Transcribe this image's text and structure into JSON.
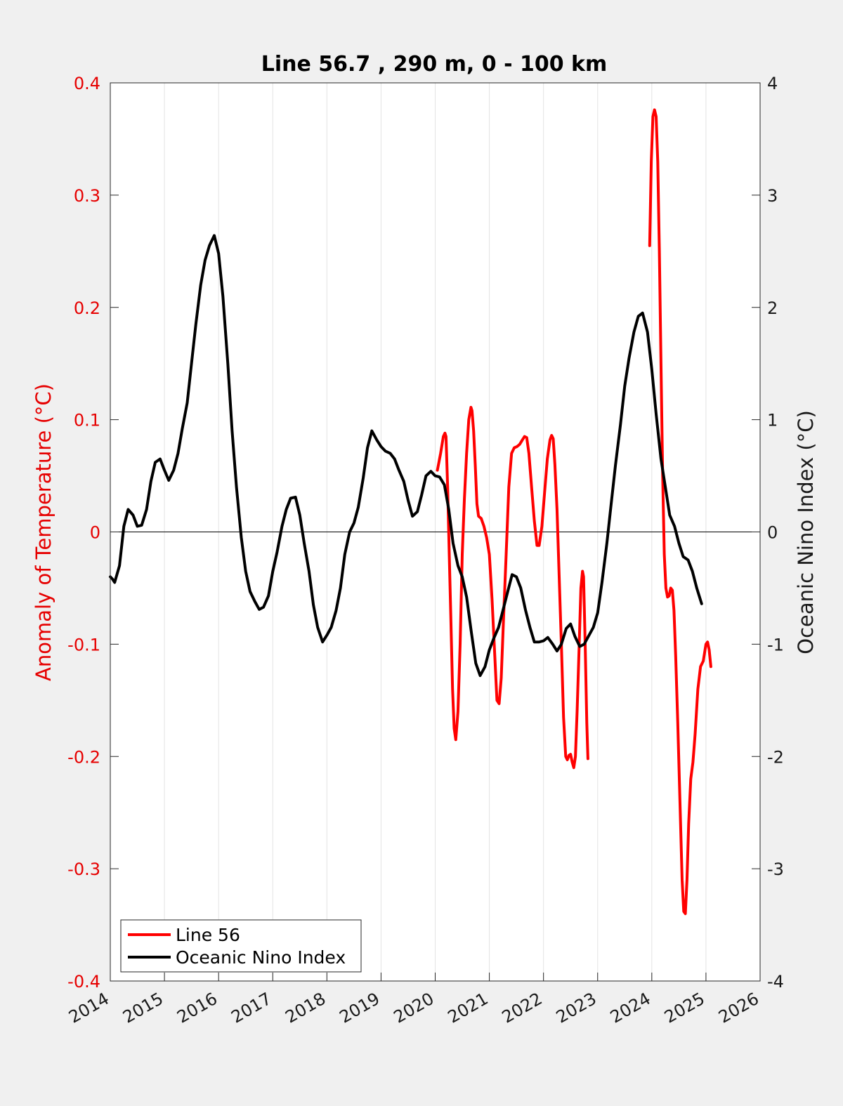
{
  "chart_data": {
    "type": "line",
    "title": "Line 56.7 , 290 m, 0 - 100 km",
    "xlabel": "",
    "ylabel_left": "Anomaly of Temperature (°C)",
    "ylabel_right": "Oceanic Nino Index (°C)",
    "xlim": [
      2014,
      2026
    ],
    "ylim_left": [
      -0.4,
      0.4
    ],
    "ylim_right": [
      -4,
      4
    ],
    "x_ticks": [
      "2014",
      "2015",
      "2016",
      "2017",
      "2018",
      "2019",
      "2020",
      "2021",
      "2022",
      "2023",
      "2024",
      "2025",
      "2026"
    ],
    "y_ticks_left": [
      "-0.4",
      "-0.3",
      "-0.2",
      "-0.1",
      "0",
      "0.1",
      "0.2",
      "0.3",
      "0.4"
    ],
    "y_ticks_right": [
      "-4",
      "-3",
      "-2",
      "-1",
      "0",
      "1",
      "2",
      "3",
      "4"
    ],
    "grid": "vertical",
    "zero_line": true,
    "legend_position": "bottom-left",
    "series": [
      {
        "name": "Line 56",
        "axis": "left",
        "color": "#ff0000",
        "segments": [
          [
            [
              2020.04,
              0.055
            ],
            [
              2020.1,
              0.07
            ],
            [
              2020.15,
              0.085
            ],
            [
              2020.18,
              0.088
            ],
            [
              2020.2,
              0.085
            ],
            [
              2020.23,
              0.04
            ],
            [
              2020.26,
              -0.02
            ],
            [
              2020.29,
              -0.08
            ],
            [
              2020.32,
              -0.14
            ],
            [
              2020.35,
              -0.175
            ],
            [
              2020.38,
              -0.185
            ],
            [
              2020.42,
              -0.16
            ],
            [
              2020.46,
              -0.1
            ],
            [
              2020.5,
              -0.02
            ],
            [
              2020.54,
              0.03
            ],
            [
              2020.58,
              0.07
            ],
            [
              2020.62,
              0.1
            ],
            [
              2020.66,
              0.111
            ],
            [
              2020.68,
              0.108
            ],
            [
              2020.71,
              0.09
            ],
            [
              2020.74,
              0.06
            ],
            [
              2020.77,
              0.025
            ],
            [
              2020.8,
              0.014
            ],
            [
              2020.85,
              0.012
            ],
            [
              2020.9,
              0.005
            ],
            [
              2020.95,
              -0.005
            ],
            [
              2021.0,
              -0.02
            ],
            [
              2021.05,
              -0.06
            ],
            [
              2021.1,
              -0.11
            ],
            [
              2021.14,
              -0.15
            ],
            [
              2021.18,
              -0.153
            ],
            [
              2021.22,
              -0.13
            ],
            [
              2021.26,
              -0.08
            ],
            [
              2021.31,
              -0.02
            ],
            [
              2021.36,
              0.04
            ],
            [
              2021.41,
              0.07
            ],
            [
              2021.46,
              0.075
            ],
            [
              2021.51,
              0.076
            ],
            [
              2021.56,
              0.078
            ],
            [
              2021.61,
              0.082
            ],
            [
              2021.65,
              0.085
            ],
            [
              2021.69,
              0.084
            ],
            [
              2021.73,
              0.07
            ],
            [
              2021.78,
              0.04
            ],
            [
              2021.83,
              0.01
            ],
            [
              2021.88,
              -0.012
            ],
            [
              2021.92,
              -0.012
            ],
            [
              2021.97,
              0.005
            ],
            [
              2022.02,
              0.035
            ],
            [
              2022.07,
              0.065
            ],
            [
              2022.12,
              0.082
            ],
            [
              2022.15,
              0.086
            ],
            [
              2022.18,
              0.083
            ],
            [
              2022.21,
              0.06
            ],
            [
              2022.25,
              0.02
            ],
            [
              2022.29,
              -0.04
            ],
            [
              2022.33,
              -0.1
            ],
            [
              2022.37,
              -0.165
            ],
            [
              2022.41,
              -0.2
            ],
            [
              2022.44,
              -0.203
            ],
            [
              2022.47,
              -0.199
            ],
            [
              2022.5,
              -0.198
            ],
            [
              2022.53,
              -0.205
            ],
            [
              2022.56,
              -0.21
            ],
            [
              2022.59,
              -0.2
            ],
            [
              2022.62,
              -0.16
            ],
            [
              2022.66,
              -0.1
            ],
            [
              2022.69,
              -0.05
            ],
            [
              2022.72,
              -0.035
            ],
            [
              2022.74,
              -0.04
            ],
            [
              2022.77,
              -0.1
            ],
            [
              2022.8,
              -0.17
            ],
            [
              2022.82,
              -0.202
            ]
          ],
          [
            [
              2023.96,
              0.255
            ],
            [
              2023.99,
              0.33
            ],
            [
              2024.02,
              0.37
            ],
            [
              2024.05,
              0.376
            ],
            [
              2024.08,
              0.37
            ],
            [
              2024.11,
              0.33
            ],
            [
              2024.14,
              0.25
            ],
            [
              2024.17,
              0.15
            ],
            [
              2024.2,
              0.05
            ],
            [
              2024.23,
              -0.02
            ],
            [
              2024.26,
              -0.05
            ],
            [
              2024.29,
              -0.058
            ],
            [
              2024.32,
              -0.057
            ],
            [
              2024.35,
              -0.05
            ],
            [
              2024.38,
              -0.052
            ],
            [
              2024.41,
              -0.07
            ],
            [
              2024.44,
              -0.11
            ],
            [
              2024.48,
              -0.17
            ],
            [
              2024.52,
              -0.24
            ],
            [
              2024.56,
              -0.31
            ],
            [
              2024.59,
              -0.338
            ],
            [
              2024.62,
              -0.34
            ],
            [
              2024.65,
              -0.31
            ],
            [
              2024.68,
              -0.26
            ],
            [
              2024.72,
              -0.22
            ],
            [
              2024.76,
              -0.205
            ],
            [
              2024.8,
              -0.18
            ],
            [
              2024.85,
              -0.14
            ],
            [
              2024.9,
              -0.12
            ],
            [
              2024.95,
              -0.115
            ],
            [
              2025.0,
              -0.1
            ],
            [
              2025.03,
              -0.098
            ],
            [
              2025.06,
              -0.105
            ],
            [
              2025.09,
              -0.12
            ]
          ]
        ]
      },
      {
        "name": "Oceanic Nino Index",
        "axis": "right",
        "color": "#000000",
        "points": [
          [
            2014.0,
            -0.4
          ],
          [
            2014.04,
            -0.42
          ],
          [
            2014.08,
            -0.45
          ],
          [
            2014.17,
            -0.3
          ],
          [
            2014.25,
            0.05
          ],
          [
            2014.33,
            0.2
          ],
          [
            2014.42,
            0.15
          ],
          [
            2014.5,
            0.05
          ],
          [
            2014.58,
            0.06
          ],
          [
            2014.67,
            0.2
          ],
          [
            2014.75,
            0.45
          ],
          [
            2014.83,
            0.62
          ],
          [
            2014.92,
            0.65
          ],
          [
            2015.0,
            0.55
          ],
          [
            2015.08,
            0.46
          ],
          [
            2015.17,
            0.55
          ],
          [
            2015.25,
            0.7
          ],
          [
            2015.33,
            0.92
          ],
          [
            2015.42,
            1.15
          ],
          [
            2015.5,
            1.5
          ],
          [
            2015.58,
            1.85
          ],
          [
            2015.67,
            2.2
          ],
          [
            2015.75,
            2.42
          ],
          [
            2015.83,
            2.55
          ],
          [
            2015.92,
            2.64
          ],
          [
            2016.0,
            2.48
          ],
          [
            2016.08,
            2.1
          ],
          [
            2016.17,
            1.5
          ],
          [
            2016.25,
            0.9
          ],
          [
            2016.33,
            0.4
          ],
          [
            2016.42,
            -0.05
          ],
          [
            2016.5,
            -0.35
          ],
          [
            2016.58,
            -0.53
          ],
          [
            2016.67,
            -0.62
          ],
          [
            2016.75,
            -0.69
          ],
          [
            2016.83,
            -0.67
          ],
          [
            2016.92,
            -0.57
          ],
          [
            2017.0,
            -0.35
          ],
          [
            2017.08,
            -0.18
          ],
          [
            2017.17,
            0.05
          ],
          [
            2017.25,
            0.2
          ],
          [
            2017.33,
            0.3
          ],
          [
            2017.42,
            0.31
          ],
          [
            2017.5,
            0.15
          ],
          [
            2017.58,
            -0.1
          ],
          [
            2017.67,
            -0.35
          ],
          [
            2017.75,
            -0.65
          ],
          [
            2017.83,
            -0.85
          ],
          [
            2017.92,
            -0.98
          ],
          [
            2018.0,
            -0.92
          ],
          [
            2018.08,
            -0.85
          ],
          [
            2018.17,
            -0.7
          ],
          [
            2018.25,
            -0.5
          ],
          [
            2018.33,
            -0.2
          ],
          [
            2018.42,
            0.0
          ],
          [
            2018.5,
            0.08
          ],
          [
            2018.58,
            0.22
          ],
          [
            2018.67,
            0.48
          ],
          [
            2018.75,
            0.75
          ],
          [
            2018.83,
            0.9
          ],
          [
            2018.92,
            0.82
          ],
          [
            2019.0,
            0.76
          ],
          [
            2019.08,
            0.72
          ],
          [
            2019.17,
            0.7
          ],
          [
            2019.25,
            0.65
          ],
          [
            2019.33,
            0.55
          ],
          [
            2019.42,
            0.45
          ],
          [
            2019.5,
            0.28
          ],
          [
            2019.58,
            0.14
          ],
          [
            2019.67,
            0.18
          ],
          [
            2019.75,
            0.33
          ],
          [
            2019.83,
            0.5
          ],
          [
            2019.92,
            0.54
          ],
          [
            2020.0,
            0.5
          ],
          [
            2020.08,
            0.49
          ],
          [
            2020.17,
            0.42
          ],
          [
            2020.25,
            0.2
          ],
          [
            2020.33,
            -0.1
          ],
          [
            2020.42,
            -0.3
          ],
          [
            2020.5,
            -0.4
          ],
          [
            2020.58,
            -0.58
          ],
          [
            2020.67,
            -0.9
          ],
          [
            2020.75,
            -1.17
          ],
          [
            2020.83,
            -1.28
          ],
          [
            2020.92,
            -1.2
          ],
          [
            2021.0,
            -1.05
          ],
          [
            2021.08,
            -0.95
          ],
          [
            2021.17,
            -0.85
          ],
          [
            2021.25,
            -0.7
          ],
          [
            2021.33,
            -0.55
          ],
          [
            2021.42,
            -0.38
          ],
          [
            2021.5,
            -0.4
          ],
          [
            2021.58,
            -0.5
          ],
          [
            2021.67,
            -0.7
          ],
          [
            2021.75,
            -0.85
          ],
          [
            2021.83,
            -0.98
          ],
          [
            2021.92,
            -0.98
          ],
          [
            2022.0,
            -0.97
          ],
          [
            2022.08,
            -0.94
          ],
          [
            2022.17,
            -1.0
          ],
          [
            2022.25,
            -1.06
          ],
          [
            2022.33,
            -1.0
          ],
          [
            2022.42,
            -0.86
          ],
          [
            2022.5,
            -0.82
          ],
          [
            2022.58,
            -0.93
          ],
          [
            2022.67,
            -1.02
          ],
          [
            2022.75,
            -1.0
          ],
          [
            2022.83,
            -0.93
          ],
          [
            2022.92,
            -0.85
          ],
          [
            2023.0,
            -0.72
          ],
          [
            2023.08,
            -0.45
          ],
          [
            2023.17,
            -0.1
          ],
          [
            2023.25,
            0.25
          ],
          [
            2023.33,
            0.6
          ],
          [
            2023.42,
            0.95
          ],
          [
            2023.5,
            1.3
          ],
          [
            2023.58,
            1.55
          ],
          [
            2023.67,
            1.78
          ],
          [
            2023.75,
            1.92
          ],
          [
            2023.83,
            1.95
          ],
          [
            2023.92,
            1.78
          ],
          [
            2024.0,
            1.45
          ],
          [
            2024.08,
            1.05
          ],
          [
            2024.17,
            0.65
          ],
          [
            2024.25,
            0.4
          ],
          [
            2024.33,
            0.15
          ],
          [
            2024.42,
            0.05
          ],
          [
            2024.5,
            -0.1
          ],
          [
            2024.58,
            -0.22
          ],
          [
            2024.67,
            -0.25
          ],
          [
            2024.75,
            -0.35
          ],
          [
            2024.83,
            -0.5
          ],
          [
            2024.92,
            -0.64
          ]
        ]
      }
    ]
  }
}
